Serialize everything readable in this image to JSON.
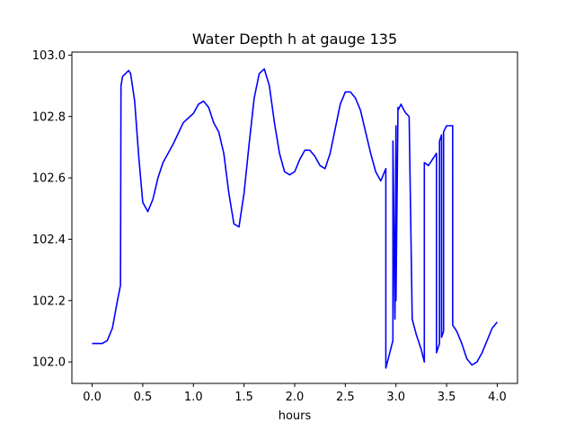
{
  "chart_data": {
    "type": "line",
    "title": "Water Depth h at gauge 135",
    "xlabel": "hours",
    "ylabel": "",
    "xlim": [
      -0.2,
      4.2
    ],
    "ylim": [
      101.93,
      103.01
    ],
    "xticks": [
      0.0,
      0.5,
      1.0,
      1.5,
      2.0,
      2.5,
      3.0,
      3.5,
      4.0
    ],
    "xtick_labels": [
      "0.0",
      "0.5",
      "1.0",
      "1.5",
      "2.0",
      "2.5",
      "3.0",
      "3.5",
      "4.0"
    ],
    "yticks": [
      102.0,
      102.2,
      102.4,
      102.6,
      102.8,
      103.0
    ],
    "ytick_labels": [
      "102.0",
      "102.2",
      "102.4",
      "102.6",
      "102.8",
      "103.0"
    ],
    "grid": false,
    "series": [
      {
        "color": "#0000ff",
        "x": [
          0.0,
          0.1,
          0.15,
          0.2,
          0.25,
          0.28,
          0.285,
          0.3,
          0.33,
          0.36,
          0.38,
          0.42,
          0.46,
          0.5,
          0.55,
          0.6,
          0.65,
          0.7,
          0.8,
          0.9,
          1.0,
          1.05,
          1.1,
          1.15,
          1.2,
          1.25,
          1.3,
          1.35,
          1.4,
          1.45,
          1.5,
          1.55,
          1.6,
          1.65,
          1.7,
          1.75,
          1.8,
          1.85,
          1.9,
          1.95,
          2.0,
          2.05,
          2.1,
          2.15,
          2.2,
          2.25,
          2.3,
          2.35,
          2.4,
          2.45,
          2.5,
          2.55,
          2.6,
          2.65,
          2.7,
          2.75,
          2.8,
          2.85,
          2.9,
          2.9001,
          2.97,
          2.9701,
          2.99,
          3.0,
          3.0001,
          3.02,
          3.0201,
          3.05,
          3.08,
          3.1,
          3.13,
          3.16,
          3.1601,
          3.2,
          3.25,
          3.28,
          3.2801,
          3.32,
          3.36,
          3.4,
          3.4001,
          3.43,
          3.4301,
          3.45,
          3.4501,
          3.47,
          3.4701,
          3.5,
          3.55,
          3.56,
          3.5601,
          3.6,
          3.65,
          3.7,
          3.75,
          3.8,
          3.85,
          3.9,
          3.95,
          4.0
        ],
        "y": [
          102.06,
          102.06,
          102.07,
          102.11,
          102.2,
          102.25,
          102.9,
          102.93,
          102.94,
          102.95,
          102.94,
          102.85,
          102.67,
          102.52,
          102.49,
          102.53,
          102.6,
          102.65,
          102.71,
          102.78,
          102.81,
          102.84,
          102.85,
          102.83,
          102.78,
          102.75,
          102.68,
          102.55,
          102.45,
          102.44,
          102.55,
          102.71,
          102.86,
          102.94,
          102.955,
          102.9,
          102.78,
          102.68,
          102.62,
          102.61,
          102.62,
          102.66,
          102.69,
          102.69,
          102.67,
          102.64,
          102.63,
          102.68,
          102.76,
          102.84,
          102.88,
          102.88,
          102.86,
          102.82,
          102.75,
          102.68,
          102.62,
          102.59,
          102.63,
          101.98,
          102.07,
          102.72,
          102.14,
          102.77,
          102.2,
          102.83,
          102.82,
          102.84,
          102.82,
          102.81,
          102.8,
          102.15,
          102.14,
          102.09,
          102.04,
          102.0,
          102.65,
          102.64,
          102.66,
          102.68,
          102.03,
          102.06,
          102.72,
          102.74,
          102.08,
          102.1,
          102.75,
          102.77,
          102.77,
          102.77,
          102.12,
          102.1,
          102.06,
          102.01,
          101.99,
          102.0,
          102.03,
          102.07,
          102.11,
          102.13
        ]
      }
    ]
  }
}
